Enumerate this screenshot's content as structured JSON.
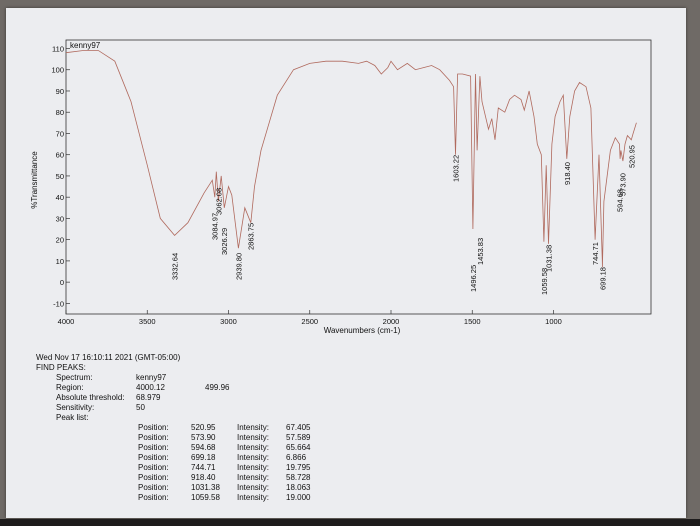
{
  "chart_data": {
    "type": "line",
    "spectrum_name": "kenny97",
    "xlabel": "Wavenumbers (cm-1)",
    "ylabel": "%Transmittance",
    "xlim": [
      4000,
      400
    ],
    "ylim": [
      -15,
      114
    ],
    "x_ticks": [
      4000,
      3500,
      3000,
      2500,
      2000,
      1500,
      1000
    ],
    "y_ticks": [
      -10,
      0,
      10,
      20,
      30,
      40,
      50,
      60,
      70,
      80,
      90,
      100,
      110
    ],
    "grid": false,
    "line_color": "#b06a5e",
    "series": [
      {
        "x": [
          4000,
          3900,
          3800,
          3700,
          3600,
          3500,
          3420,
          3332,
          3250,
          3150,
          3100,
          3084,
          3075,
          3062,
          3045,
          3026,
          3000,
          2980,
          2939,
          2900,
          2863,
          2840,
          2800,
          2700,
          2600,
          2500,
          2400,
          2300,
          2200,
          2150,
          2100,
          2060,
          2020,
          2000,
          1960,
          1900,
          1850,
          1800,
          1750,
          1700,
          1640,
          1615,
          1603,
          1590,
          1560,
          1510,
          1496,
          1480,
          1470,
          1453,
          1440,
          1400,
          1380,
          1360,
          1340,
          1300,
          1270,
          1240,
          1200,
          1180,
          1150,
          1120,
          1100,
          1075,
          1059,
          1045,
          1031,
          1010,
          990,
          960,
          940,
          918,
          900,
          870,
          840,
          800,
          770,
          744,
          720,
          700,
          699,
          690,
          650,
          620,
          594,
          590,
          585,
          573,
          560,
          545,
          521,
          510,
          490
        ],
        "y": [
          108,
          109,
          109,
          104,
          85,
          55,
          30,
          22,
          28,
          42,
          48,
          40,
          52,
          38,
          50,
          35,
          45,
          41,
          16,
          35,
          28,
          45,
          62,
          88,
          100,
          103,
          104,
          104,
          103,
          104,
          102,
          98,
          101,
          104,
          100,
          103,
          100,
          101,
          102,
          100,
          95,
          92,
          60,
          98,
          98,
          97,
          25,
          98,
          62,
          97,
          85,
          72,
          77,
          67,
          82,
          80,
          86,
          88,
          86,
          81,
          90,
          78,
          65,
          60,
          19,
          55,
          18,
          65,
          78,
          85,
          88,
          58,
          78,
          90,
          94,
          92,
          82,
          20,
          60,
          10,
          7,
          38,
          62,
          68,
          65,
          58,
          62,
          57,
          65,
          69,
          67,
          70,
          75
        ]
      }
    ],
    "peak_labels": [
      "3332.64",
      "3084.97",
      "3062.08",
      "3026.29",
      "2939.80",
      "2863.75",
      "1603.22",
      "1496.25",
      "1453.83",
      "1059.58",
      "1031.38",
      "918.40",
      "744.71",
      "699.18",
      "594.68",
      "573.90",
      "520.95"
    ]
  },
  "report": {
    "timestamp": "Wed Nov 17 16:10:11 2021 (GMT-05:00)",
    "title": "FIND PEAKS:",
    "spectrum_label": "Spectrum:",
    "spectrum_value": "kenny97",
    "region_label": "Region:",
    "region_start": "4000.12",
    "region_end": "499.96",
    "threshold_label": "Absolute threshold:",
    "threshold_value": "68.979",
    "sensitivity_label": "Sensitivity:",
    "sensitivity_value": "50",
    "peaklist_label": "Peak list:",
    "position_label": "Position:",
    "intensity_label": "Intensity:",
    "peaks": [
      {
        "position": "520.95",
        "intensity": "67.405"
      },
      {
        "position": "573.90",
        "intensity": "57.589"
      },
      {
        "position": "594.68",
        "intensity": "65.664"
      },
      {
        "position": "699.18",
        "intensity": "6.866"
      },
      {
        "position": "744.71",
        "intensity": "19.795"
      },
      {
        "position": "918.40",
        "intensity": "58.728"
      },
      {
        "position": "1031.38",
        "intensity": "18.063"
      },
      {
        "position": "1059.58",
        "intensity": "19.000"
      }
    ]
  }
}
